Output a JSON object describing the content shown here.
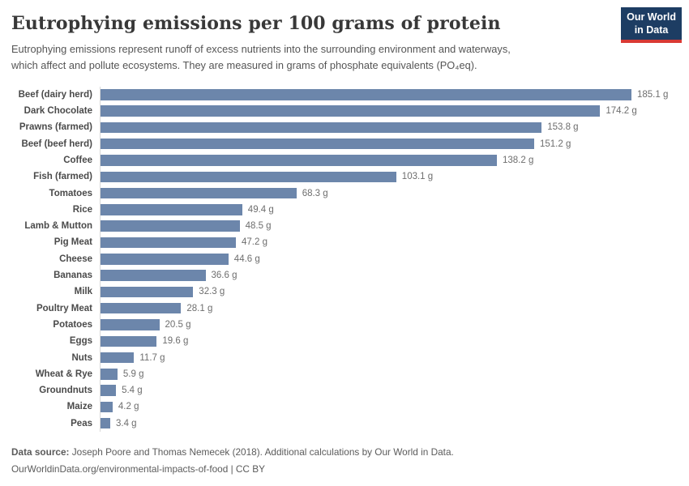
{
  "header": {
    "title": "Eutrophying emissions per 100 grams of protein",
    "subtitle_lines": [
      "Eutrophying emissions represent runoff of excess nutrients into the surrounding environment and waterways,",
      "which affect and pollute ecosystems. They are measured in grams of phosphate equivalents (PO₄eq)."
    ]
  },
  "logo": {
    "line1": "Our World",
    "line2": "in Data",
    "bg_color": "#1d3d63",
    "stripe_color": "#d93a34"
  },
  "chart_data": {
    "type": "bar",
    "orientation": "horizontal",
    "title": "Eutrophying emissions per 100 grams of protein",
    "unit": "g",
    "bar_color": "#6c86ab",
    "axis_line_color": "#d9d9d9",
    "xlim": [
      0,
      185.1
    ],
    "grid": false,
    "legend": false,
    "categories": [
      "Beef (dairy herd)",
      "Dark Chocolate",
      "Prawns (farmed)",
      "Beef (beef herd)",
      "Coffee",
      "Fish (farmed)",
      "Tomatoes",
      "Rice",
      "Lamb & Mutton",
      "Pig Meat",
      "Cheese",
      "Bananas",
      "Milk",
      "Poultry Meat",
      "Potatoes",
      "Eggs",
      "Nuts",
      "Wheat & Rye",
      "Groundnuts",
      "Maize",
      "Peas"
    ],
    "values": [
      185.1,
      174.2,
      153.8,
      151.2,
      138.2,
      103.1,
      68.3,
      49.4,
      48.5,
      47.2,
      44.6,
      36.6,
      32.3,
      28.1,
      20.5,
      19.6,
      11.7,
      5.9,
      5.4,
      4.2,
      3.4
    ]
  },
  "footer": {
    "source_label": "Data source:",
    "source_text": " Joseph Poore and Thomas Nemecek (2018). Additional calculations by Our World in Data.",
    "license_line": "OurWorldinData.org/environmental-impacts-of-food | CC BY"
  }
}
